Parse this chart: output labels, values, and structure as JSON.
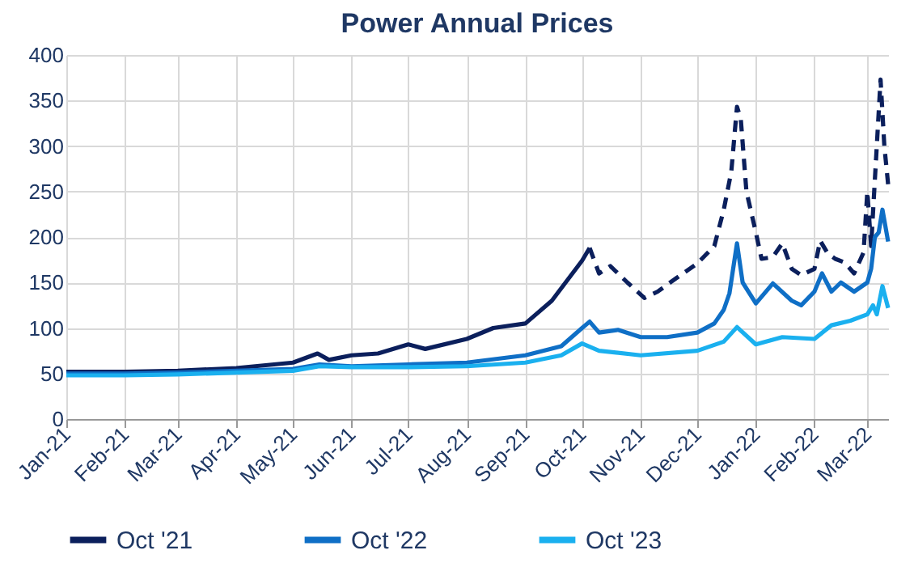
{
  "chart_data": {
    "type": "line",
    "title": "Power Annual Prices",
    "xlim": [
      "2021-01-01",
      "2022-03-12"
    ],
    "xticks": [
      {
        "value": "2021-01-01",
        "label": "Jan-21"
      },
      {
        "value": "2021-02-01",
        "label": "Feb-21"
      },
      {
        "value": "2021-03-01",
        "label": "Mar-21"
      },
      {
        "value": "2021-04-01",
        "label": "Apr-21"
      },
      {
        "value": "2021-05-01",
        "label": "May-21"
      },
      {
        "value": "2021-06-01",
        "label": "Jun-21"
      },
      {
        "value": "2021-07-01",
        "label": "Jul-21"
      },
      {
        "value": "2021-08-01",
        "label": "Aug-21"
      },
      {
        "value": "2021-09-01",
        "label": "Sep-21"
      },
      {
        "value": "2021-10-01",
        "label": "Oct-21"
      },
      {
        "value": "2021-11-01",
        "label": "Nov-21"
      },
      {
        "value": "2021-12-01",
        "label": "Dec-21"
      },
      {
        "value": "2022-01-01",
        "label": "Jan-22"
      },
      {
        "value": "2022-02-01",
        "label": "Feb-22"
      },
      {
        "value": "2022-03-01",
        "label": "Mar-22"
      }
    ],
    "ylim": [
      0,
      400
    ],
    "yticks": [
      0,
      50,
      100,
      150,
      200,
      250,
      300,
      350,
      400
    ],
    "grid": true,
    "legend": "bottom",
    "marker": "none",
    "series": [
      {
        "name": "Oct '21",
        "color": "#0b1f5c",
        "line_style": "solid",
        "x": [
          "2021-01-01",
          "2021-02-01",
          "2021-03-01",
          "2021-04-01",
          "2021-05-01",
          "2021-05-14",
          "2021-05-20",
          "2021-06-01",
          "2021-06-15",
          "2021-07-01",
          "2021-07-10",
          "2021-08-01",
          "2021-08-15",
          "2021-09-01",
          "2021-09-15",
          "2021-10-01",
          "2021-10-05"
        ],
        "values": [
          52,
          52,
          53,
          56,
          62,
          72,
          65,
          70,
          72,
          82,
          77,
          88,
          100,
          105,
          130,
          174,
          188
        ]
      },
      {
        "color": "#0b1f5c",
        "line_style": "dashed",
        "x": [
          "2021-10-05",
          "2021-10-10",
          "2021-10-16",
          "2021-10-25",
          "2021-11-03",
          "2021-11-10",
          "2021-11-20",
          "2021-12-01",
          "2021-12-10",
          "2021-12-15",
          "2021-12-19",
          "2021-12-22",
          "2021-12-24",
          "2021-12-27",
          "2022-01-01",
          "2022-01-04",
          "2022-01-10",
          "2022-01-15",
          "2022-01-20",
          "2022-01-25",
          "2022-02-01",
          "2022-02-04",
          "2022-02-08",
          "2022-02-12",
          "2022-02-17",
          "2022-02-22",
          "2022-02-27",
          "2022-03-01",
          "2022-03-03",
          "2022-03-06",
          "2022-03-08",
          "2022-03-10",
          "2022-03-12"
        ],
        "values": [
          188,
          160,
          168,
          150,
          133,
          140,
          155,
          171,
          190,
          230,
          272,
          343,
          330,
          250,
          205,
          176,
          178,
          193,
          165,
          158,
          165,
          196,
          182,
          176,
          172,
          160,
          183,
          250,
          190,
          300,
          373,
          300,
          258
        ]
      },
      {
        "name": "Oct '22",
        "color": "#0f6fc6",
        "line_style": "solid",
        "x": [
          "2021-01-01",
          "2021-02-01",
          "2021-03-01",
          "2021-04-01",
          "2021-05-01",
          "2021-05-15",
          "2021-06-01",
          "2021-07-01",
          "2021-08-01",
          "2021-09-01",
          "2021-09-20",
          "2021-10-01",
          "2021-10-05",
          "2021-10-10",
          "2021-10-20",
          "2021-11-01",
          "2021-11-15",
          "2021-12-01",
          "2021-12-10",
          "2021-12-15",
          "2021-12-18",
          "2021-12-22",
          "2021-12-25",
          "2022-01-01",
          "2022-01-10",
          "2022-01-20",
          "2022-01-25",
          "2022-02-01",
          "2022-02-05",
          "2022-02-10",
          "2022-02-15",
          "2022-02-22",
          "2022-03-01",
          "2022-03-03",
          "2022-03-05",
          "2022-03-07",
          "2022-03-09",
          "2022-03-12"
        ],
        "values": [
          50,
          50,
          51,
          53,
          55,
          60,
          58,
          60,
          62,
          70,
          80,
          100,
          107,
          95,
          98,
          90,
          90,
          95,
          105,
          120,
          138,
          193,
          150,
          127,
          149,
          130,
          125,
          140,
          160,
          140,
          150,
          140,
          150,
          165,
          200,
          205,
          230,
          195
        ]
      },
      {
        "name": "Oct '23",
        "color": "#1ab0ef",
        "line_style": "solid",
        "x": [
          "2021-01-01",
          "2021-02-01",
          "2021-03-01",
          "2021-04-01",
          "2021-05-01",
          "2021-05-15",
          "2021-06-01",
          "2021-07-01",
          "2021-08-01",
          "2021-09-01",
          "2021-09-20",
          "2021-10-01",
          "2021-10-10",
          "2021-11-01",
          "2021-12-01",
          "2021-12-15",
          "2021-12-22",
          "2022-01-01",
          "2022-01-15",
          "2022-02-01",
          "2022-02-10",
          "2022-02-20",
          "2022-03-01",
          "2022-03-04",
          "2022-03-06",
          "2022-03-09",
          "2022-03-12"
        ],
        "values": [
          48,
          48,
          49,
          51,
          53,
          58,
          57,
          57,
          58,
          62,
          70,
          83,
          75,
          70,
          75,
          85,
          101,
          82,
          90,
          88,
          103,
          108,
          115,
          125,
          115,
          146,
          122
        ]
      }
    ]
  }
}
